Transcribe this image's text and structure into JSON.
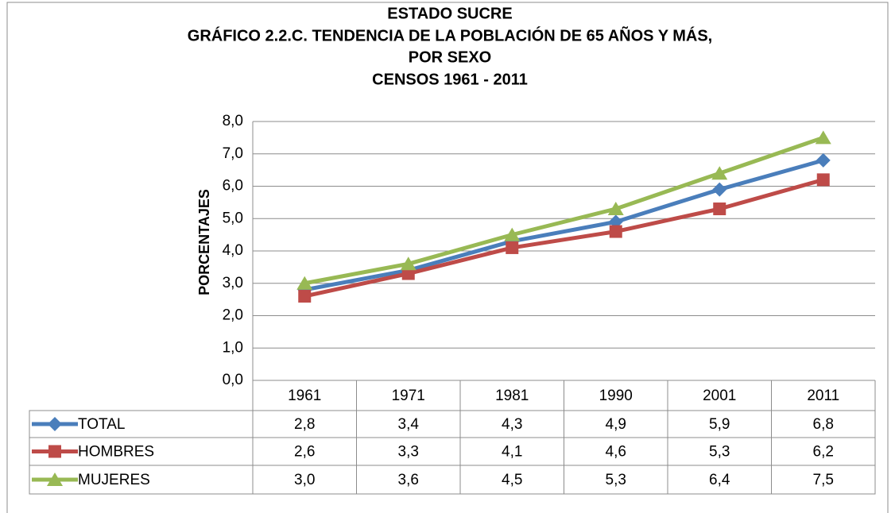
{
  "chart_data": {
    "type": "line",
    "title": [
      "ESTADO SUCRE",
      "GRÁFICO 2.2.C. TENDENCIA DE LA POBLACIÓN  DE 65 AÑOS Y MÁS,",
      "POR SEXO",
      "CENSOS 1961 - 2011"
    ],
    "y_label": "PORCENTAJES",
    "categories": [
      "1961",
      "1971",
      "1981",
      "1990",
      "2001",
      "2011"
    ],
    "series": [
      {
        "name": "TOTAL",
        "color": "#4a7ebb",
        "marker": "diamond",
        "values": [
          2.8,
          3.4,
          4.3,
          4.9,
          5.9,
          6.8
        ],
        "value_labels": [
          "2,8",
          "3,4",
          "4,3",
          "4,9",
          "5,9",
          "6,8"
        ]
      },
      {
        "name": "HOMBRES",
        "color": "#be4b48",
        "marker": "square",
        "values": [
          2.6,
          3.3,
          4.1,
          4.6,
          5.3,
          6.2
        ],
        "value_labels": [
          "2,6",
          "3,3",
          "4,1",
          "4,6",
          "5,3",
          "6,2"
        ]
      },
      {
        "name": "MUJERES",
        "color": "#98b954",
        "marker": "triangle",
        "values": [
          3.0,
          3.6,
          4.5,
          5.3,
          6.4,
          7.5
        ],
        "value_labels": [
          "3,0",
          "3,6",
          "4,5",
          "5,3",
          "6,4",
          "7,5"
        ]
      }
    ],
    "ylim": [
      0,
      8
    ],
    "yticks": [
      {
        "value": 0,
        "label": "0,0"
      },
      {
        "value": 1,
        "label": "1,0"
      },
      {
        "value": 2,
        "label": "2,0"
      },
      {
        "value": 3,
        "label": "3,0"
      },
      {
        "value": 4,
        "label": "4,0"
      },
      {
        "value": 5,
        "label": "5,0"
      },
      {
        "value": 6,
        "label": "6,0"
      },
      {
        "value": 7,
        "label": "7,0"
      },
      {
        "value": 8,
        "label": "8,0"
      }
    ],
    "grid": true,
    "data_table": true
  }
}
